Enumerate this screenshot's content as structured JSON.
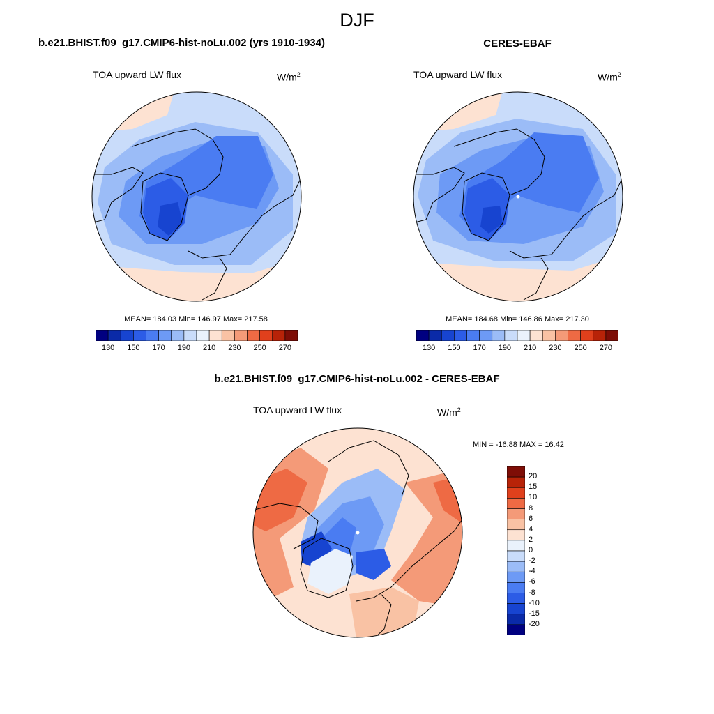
{
  "page": {
    "season": "DJF"
  },
  "panels": {
    "model": {
      "title": "b.e21.BHIST.f09_g17.CMIP6-hist-noLu.002 (yrs 1910-1934)",
      "variable": "TOA upward LW flux",
      "unit_base": "W/m",
      "unit_exp": "2",
      "stats": "MEAN= 184.03  Min= 146.97  Max= 217.58"
    },
    "obs": {
      "title": "CERES-EBAF",
      "variable": "TOA upward LW flux",
      "unit_base": "W/m",
      "unit_exp": "2",
      "stats": "MEAN= 184.68  Min= 146.86  Max= 217.30"
    },
    "diff": {
      "title": "b.e21.BHIST.f09_g17.CMIP6-hist-noLu.002 - CERES-EBAF",
      "variable": "TOA upward LW flux",
      "unit_base": "W/m",
      "unit_exp": "2",
      "stats": "MIN = -16.88 MAX =  16.42"
    }
  },
  "colorbars": {
    "abs": {
      "colors": [
        "#000080",
        "#0a2aa8",
        "#1744d0",
        "#2c5ce6",
        "#4a7cf2",
        "#6d9af5",
        "#9bbcf7",
        "#c9dcfa",
        "#eaf2fc",
        "#fde2d2",
        "#f9c2a4",
        "#f49a78",
        "#ee6a44",
        "#e0401c",
        "#b82308",
        "#7e0d06"
      ],
      "tick_labels": [
        "130",
        "150",
        "170",
        "190",
        "210",
        "230",
        "250",
        "270"
      ]
    },
    "diff": {
      "colors": [
        "#7e0d06",
        "#b82308",
        "#e0401c",
        "#ee6a44",
        "#f49a78",
        "#f9c2a4",
        "#fde2d2",
        "#eaf2fc",
        "#c9dcfa",
        "#9bbcf7",
        "#6d9af5",
        "#4a7cf2",
        "#2c5ce6",
        "#1744d0",
        "#0a2aa8",
        "#000080"
      ],
      "tick_labels": [
        "20",
        "15",
        "10",
        "8",
        "6",
        "4",
        "2",
        "0",
        "-2",
        "-4",
        "-6",
        "-8",
        "-10",
        "-15",
        "-20"
      ]
    }
  },
  "map_colors": {
    "deep": "#1744d0",
    "strong": "#2c5ce6",
    "mid": "#4a7cf2",
    "light": "#6d9af5",
    "pale": "#9bbcf7",
    "paler": "#c9dcfa",
    "faint": "#eaf2fc",
    "warm_faint": "#fde2d2",
    "warm_light": "#f9c2a4",
    "warm_mid": "#f49a78",
    "warm_strong": "#ee6a44"
  }
}
